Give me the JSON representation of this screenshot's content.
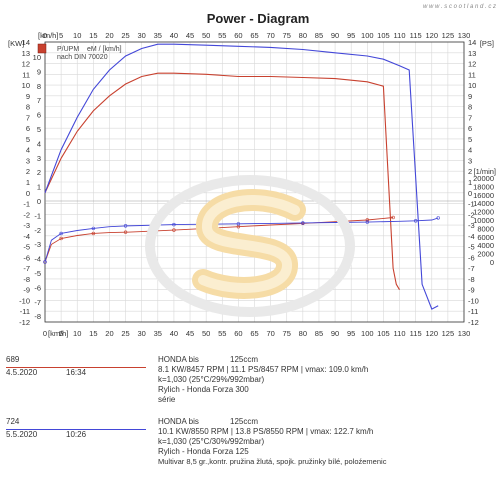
{
  "title": "Power - Diagram",
  "watermark_site": "w w w . s c o o t l a n d . c z",
  "legend": {
    "ps_label": "P/UPM",
    "unit_label": "eM / [km/h]",
    "norm_label": "nach DIN 70020"
  },
  "colors": {
    "run1": "#c8412f",
    "run2": "#4347d8",
    "grid": "#d8d8d8",
    "axis": "#333333"
  },
  "chart_data": {
    "type": "line",
    "title": "Power - Diagram",
    "x_axis": {
      "label": "[km/h]",
      "min": 0,
      "max": 130,
      "ticks": [
        0,
        5,
        10,
        15,
        20,
        25,
        30,
        35,
        40,
        45,
        50,
        55,
        60,
        65,
        70,
        75,
        80,
        85,
        90,
        95,
        100,
        105,
        110,
        115,
        120,
        125,
        130
      ]
    },
    "left_axis": {
      "label": "[KW]",
      "min": -12,
      "max": 10,
      "ticks": [
        10,
        9,
        8,
        7,
        6,
        5,
        4,
        3,
        2,
        1,
        0,
        -1,
        -2,
        -3,
        -4,
        -5,
        -6,
        -7,
        -8,
        -9,
        -10,
        -11,
        -12
      ],
      "outer_ticks": [
        14,
        13,
        12,
        11,
        10,
        9,
        8,
        7,
        6,
        5,
        4,
        3,
        2,
        1,
        0,
        -1,
        -2,
        -3,
        -4,
        -5,
        -6,
        -7,
        -8,
        -9,
        -10,
        -11,
        -12
      ]
    },
    "right_axis": {
      "label": "[PS]",
      "min": -12,
      "max": 14,
      "ticks": [
        14,
        13,
        12,
        11,
        10,
        9,
        8,
        7,
        6,
        5,
        4,
        3,
        2,
        1,
        0,
        -1,
        -2,
        -3,
        -4,
        -5,
        -6,
        -7,
        -8,
        -9,
        -10,
        -11,
        -12
      ]
    },
    "rpm_axis": {
      "label": "[1/min]",
      "min": 0,
      "max": 20000,
      "ticks": [
        20000,
        18000,
        16000,
        14000,
        12000,
        10000,
        8000,
        6000,
        4000,
        2000,
        0
      ]
    },
    "grid": true,
    "series": [
      {
        "name": "689",
        "kind": "power_ps",
        "color": "#c8412f",
        "x": [
          0,
          5,
          10,
          15,
          20,
          25,
          30,
          35,
          40,
          50,
          60,
          70,
          80,
          90,
          100,
          105,
          108,
          109,
          110
        ],
        "y": [
          0,
          3.2,
          5.7,
          7.6,
          9.0,
          10.1,
          10.8,
          11.1,
          11.1,
          11.0,
          10.8,
          10.8,
          10.7,
          10.6,
          10.3,
          9.9,
          -7,
          -8.5,
          -9
        ]
      },
      {
        "name": "724",
        "kind": "power_ps",
        "color": "#4347d8",
        "x": [
          0,
          5,
          10,
          15,
          20,
          25,
          30,
          35,
          40,
          50,
          60,
          70,
          80,
          90,
          100,
          105,
          110,
          113,
          117,
          120,
          122
        ],
        "y": [
          0,
          4.0,
          7.0,
          9.6,
          11.4,
          12.7,
          13.4,
          13.8,
          13.8,
          13.7,
          13.6,
          13.5,
          13.3,
          13.0,
          12.7,
          12.4,
          11.8,
          11.4,
          -8.5,
          -10.8,
          -10.5
        ]
      },
      {
        "name": "689",
        "kind": "rpm",
        "color": "#c8412f",
        "x": [
          0,
          2,
          5,
          10,
          15,
          20,
          25,
          30,
          40,
          50,
          60,
          70,
          80,
          90,
          100,
          108
        ],
        "y": [
          0,
          4200,
          5600,
          6300,
          6800,
          7000,
          7100,
          7250,
          7600,
          8000,
          8400,
          8800,
          9200,
          9600,
          10000,
          10600
        ]
      },
      {
        "name": "724",
        "kind": "rpm",
        "color": "#4347d8",
        "x": [
          0,
          2,
          5,
          10,
          15,
          20,
          25,
          30,
          40,
          50,
          60,
          70,
          80,
          90,
          100,
          110,
          115,
          120,
          122
        ],
        "y": [
          0,
          5200,
          6800,
          7500,
          8000,
          8400,
          8600,
          8700,
          8900,
          9000,
          9100,
          9200,
          9300,
          9400,
          9500,
          9700,
          9800,
          10000,
          10500
        ]
      }
    ]
  },
  "runs": [
    {
      "id": "689",
      "date": "4.5.2020",
      "time": "16:34",
      "make": "HONDA bis",
      "displacement": "125ccm",
      "line_power": "8.1 KW/8457 RPM  |  11.1 PS/8457 RPM  |  vmax: 109.0 km/h",
      "line_cond": "k=1,030 (25°C/29%/992mbar)",
      "line_rider": "Rylich - Honda Forza 300",
      "line_note": "série",
      "color": "#c8412f"
    },
    {
      "id": "724",
      "date": "5.5.2020",
      "time": "10:26",
      "make": "HONDA bis",
      "displacement": "125ccm",
      "line_power": "10.1 KW/8550 RPM  |  13.8 PS/8550 RPM  |  vmax: 122.7 km/h",
      "line_cond": "k=1,030 (25°C/30%/992mbar)",
      "line_rider": "Rylich - Honda Forza 125",
      "line_note": "Multivar 8,5 gr.,kontr. pružina žlutá, spojk. pružinky bílé, poloźemenic",
      "color": "#4347d8"
    }
  ]
}
